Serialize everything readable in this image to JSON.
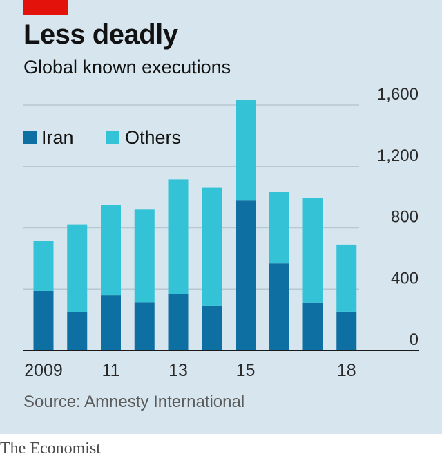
{
  "header": {
    "title": "Less deadly",
    "subtitle": "Global known executions"
  },
  "footer": {
    "source": "Source: Amnesty International",
    "brand": "The Economist"
  },
  "colors": {
    "background": "#d6e5ee",
    "iran": "#0e6fa3",
    "others": "#33c2d6",
    "accent": "#e3120b"
  },
  "chart_data": {
    "type": "bar",
    "stacked": true,
    "title": "Less deadly",
    "subtitle": "Global known executions",
    "xlabel": "",
    "ylabel": "",
    "categories": [
      "2009",
      "2010",
      "2011",
      "2012",
      "2013",
      "2014",
      "2015",
      "2016",
      "2017",
      "2018"
    ],
    "x_tick_labels": [
      "2009",
      "",
      "11",
      "",
      "13",
      "",
      "15",
      "",
      "",
      "18"
    ],
    "y_ticks": [
      0,
      400,
      800,
      1200,
      1600
    ],
    "y_tick_labels": [
      "0",
      "400",
      "800",
      "1,200",
      "1,600"
    ],
    "ylim": [
      0,
      1600
    ],
    "grid": true,
    "legend_position": "top-left",
    "series": [
      {
        "name": "Iran",
        "color": "#0e6fa3",
        "values": [
          388,
          252,
          360,
          314,
          369,
          289,
          977,
          567,
          312,
          253
        ]
      },
      {
        "name": "Others",
        "color": "#33c2d6",
        "values": [
          326,
          570,
          590,
          604,
          747,
          772,
          657,
          465,
          681,
          437
        ]
      }
    ]
  }
}
